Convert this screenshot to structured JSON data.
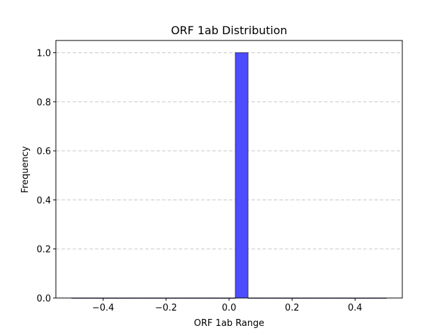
{
  "chart_data": {
    "type": "bar",
    "title": "ORF 1ab Distribution",
    "xlabel": "ORF 1ab Range",
    "ylabel": "Frequency",
    "xlim": [
      -0.55,
      0.55
    ],
    "ylim": [
      0,
      1.05
    ],
    "x_ticks": [
      -0.4,
      -0.2,
      0.0,
      0.2,
      0.4
    ],
    "x_tick_labels": [
      "−0.4",
      "−0.2",
      "0.0",
      "0.2",
      "0.4"
    ],
    "y_ticks": [
      0.0,
      0.2,
      0.4,
      0.6,
      0.8,
      1.0
    ],
    "y_tick_labels": [
      "0.0",
      "0.2",
      "0.4",
      "0.6",
      "0.8",
      "1.0"
    ],
    "bin_start": -0.5,
    "bin_width": 0.04,
    "bin_counts": [
      0,
      0,
      0,
      0,
      0,
      0,
      0,
      0,
      0,
      0,
      0,
      0,
      0,
      1,
      0,
      0,
      0,
      0,
      0,
      0,
      0,
      0,
      0,
      0,
      0
    ],
    "bar_color": "#4d4dff",
    "bar_edge_color": "#303060",
    "grid": "y-dashed",
    "grid_color": "#c8c8c8"
  }
}
